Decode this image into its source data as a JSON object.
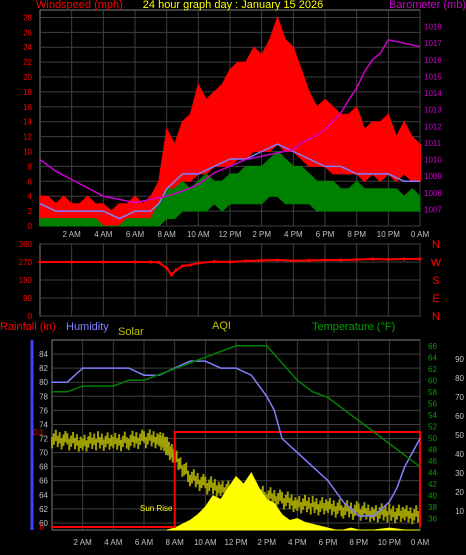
{
  "title": "24 hour graph day : January 15 2026",
  "colors": {
    "wind_gust": "#ff0000",
    "wind_avg": "#008000",
    "wind_dir": "#ff0000",
    "barometer": "#cc00cc",
    "line_blue": "#8080ff",
    "humidity": "#8080ff",
    "temperature": "#008000",
    "solar": "#a0a000",
    "uv_fill": "#ffff00",
    "rain": "#ff0000",
    "rain_axis": "#4040ff",
    "temp_axis": "#00a000",
    "aqi": "#c0c000",
    "grid": "#404040",
    "axis_text": "#c0c0c0"
  },
  "chart_data": [
    {
      "name": "wind-barometer",
      "type": "line",
      "left_label": "Windspeed (mph)",
      "right_label": "Barometer (mb)",
      "x_ticks": [
        "2 AM",
        "4 AM",
        "6 AM",
        "8 AM",
        "10 AM",
        "12 PM",
        "2 PM",
        "4 PM",
        "6 PM",
        "8 PM",
        "10 PM",
        "0 AM"
      ],
      "ylim_left": [
        0,
        29
      ],
      "ylim_right": [
        1006,
        1019
      ],
      "y_ticks_left": [
        "0",
        "2",
        "4",
        "6",
        "8",
        "10",
        "12",
        "14",
        "16",
        "18",
        "20",
        "22",
        "24",
        "26",
        "28"
      ],
      "y_ticks_right": [
        "1007",
        "1008",
        "1009",
        "1010",
        "1011",
        "1012",
        "1013",
        "1014",
        "1015",
        "1016",
        "1017",
        "1018"
      ],
      "gust_max": {
        "x": [
          0,
          0.5,
          1,
          1.5,
          2,
          2.5,
          3,
          3.5,
          4,
          4.5,
          5,
          5.5,
          6,
          6.5,
          7,
          7.5,
          8,
          8.5,
          9,
          9.5,
          10,
          10.5,
          11,
          11.5,
          12,
          12.5,
          13,
          13.5,
          14,
          14.5,
          15,
          15.5,
          16,
          16.5,
          17,
          17.5,
          18,
          18.5,
          19,
          19.5,
          20,
          20.5,
          21,
          21.5,
          22,
          22.5,
          23,
          23.5,
          24
        ],
        "y": [
          4,
          4,
          3,
          4,
          3,
          3,
          4,
          3,
          3,
          2,
          3,
          3,
          4,
          3,
          4,
          6,
          13,
          11,
          14,
          15,
          19,
          17,
          18,
          19,
          21,
          22,
          22,
          24,
          23,
          25,
          28,
          25,
          24,
          21,
          18,
          16,
          17,
          16,
          15,
          15,
          16,
          13,
          14,
          14,
          15,
          12,
          14,
          12,
          11
        ]
      },
      "gust_min": {
        "x": [
          0,
          0.5,
          1,
          1.5,
          2,
          2.5,
          3,
          3.5,
          4,
          4.5,
          5,
          5.5,
          6,
          6.5,
          7,
          7.5,
          8,
          8.5,
          9,
          9.5,
          10,
          10.5,
          11,
          11.5,
          12,
          12.5,
          13,
          13.5,
          14,
          14.5,
          15,
          15.5,
          16,
          16.5,
          17,
          17.5,
          18,
          18.5,
          19,
          19.5,
          20,
          20.5,
          21,
          21.5,
          22,
          22.5,
          23,
          23.5,
          24
        ],
        "y": [
          0,
          0,
          0,
          1,
          0,
          0,
          1,
          0,
          0,
          0,
          0,
          0,
          1,
          0,
          1,
          2,
          5,
          5,
          6,
          6,
          7,
          7,
          8,
          8,
          8,
          9,
          9,
          10,
          10,
          10,
          11,
          10,
          10,
          9,
          8,
          8,
          8,
          7,
          7,
          7,
          7,
          6,
          7,
          6,
          7,
          6,
          7,
          6,
          6
        ]
      },
      "avg_max": {
        "x": [
          0,
          0.5,
          1,
          1.5,
          2,
          2.5,
          3,
          3.5,
          4,
          4.5,
          5,
          5.5,
          6,
          6.5,
          7,
          7.5,
          8,
          8.5,
          9,
          9.5,
          10,
          10.5,
          11,
          11.5,
          12,
          12.5,
          13,
          13.5,
          14,
          14.5,
          15,
          15.5,
          16,
          16.5,
          17,
          17.5,
          18,
          18.5,
          19,
          19.5,
          20,
          20.5,
          21,
          21.5,
          22,
          22.5,
          23,
          23.5,
          24
        ],
        "y": [
          1,
          1,
          1,
          1,
          1,
          1,
          1,
          1,
          0,
          0,
          0,
          1,
          1,
          1,
          1,
          3,
          5,
          5,
          6,
          5,
          6,
          7,
          6,
          6,
          7,
          7,
          8,
          8,
          8,
          9,
          10,
          9,
          8,
          8,
          7,
          6,
          6,
          6,
          5,
          5,
          6,
          5,
          5,
          5,
          5,
          5,
          4,
          5,
          4
        ]
      },
      "avg_min": {
        "x": [
          0,
          0.5,
          1,
          1.5,
          2,
          2.5,
          3,
          3.5,
          4,
          4.5,
          5,
          5.5,
          6,
          6.5,
          7,
          7.5,
          8,
          8.5,
          9,
          9.5,
          10,
          10.5,
          11,
          11.5,
          12,
          12.5,
          13,
          13.5,
          14,
          14.5,
          15,
          15.5,
          16,
          16.5,
          17,
          17.5,
          18,
          18.5,
          19,
          19.5,
          20,
          20.5,
          21,
          21.5,
          22,
          22.5,
          23,
          23.5,
          24
        ],
        "y": [
          0,
          0,
          0,
          0,
          0,
          0,
          0,
          0,
          0,
          0,
          0,
          0,
          0,
          0,
          0,
          0,
          1,
          1,
          2,
          2,
          2,
          2,
          3,
          2,
          3,
          3,
          3,
          3,
          3,
          4,
          4,
          3,
          3,
          3,
          3,
          2,
          2,
          2,
          2,
          2,
          2,
          2,
          2,
          2,
          2,
          2,
          2,
          2,
          2
        ]
      },
      "blue_line": {
        "x": [
          0,
          1,
          2,
          3,
          4,
          5,
          6,
          7,
          7.5,
          8,
          9,
          10,
          11,
          12,
          13,
          14,
          15,
          16,
          17,
          18,
          19,
          20,
          21,
          22,
          23,
          24
        ],
        "y": [
          3,
          2,
          2,
          2,
          2,
          1,
          2,
          2,
          3,
          5,
          7,
          7,
          8,
          9,
          9,
          10,
          11,
          10,
          9,
          8,
          8,
          7,
          7,
          7,
          6,
          6
        ]
      },
      "barometer": {
        "x": [
          0,
          1,
          2,
          3,
          4,
          5,
          6,
          7,
          8,
          9,
          10,
          11,
          12,
          13,
          14,
          15,
          16,
          16.5,
          17,
          18,
          19,
          19.5,
          20,
          20.5,
          21,
          21.5,
          22,
          23,
          24
        ],
        "y": [
          1010,
          1009.3,
          1008.8,
          1008.3,
          1007.8,
          1007.6,
          1007.4,
          1007.6,
          1007.8,
          1008.1,
          1008.5,
          1009.2,
          1009.6,
          1010.0,
          1010.2,
          1010.4,
          1010.6,
          1011.0,
          1011.2,
          1011.8,
          1012.8,
          1013.6,
          1014.3,
          1015.3,
          1016.0,
          1016.4,
          1017.2,
          1017.0,
          1016.8
        ]
      }
    },
    {
      "name": "wind-direction",
      "type": "scatter",
      "y_ticks": [
        "0",
        "90",
        "180",
        "270",
        "360"
      ],
      "ylim": [
        0,
        360
      ],
      "compass": [
        "N",
        "W",
        "S",
        "E",
        "N"
      ],
      "x": [
        0,
        2,
        4,
        6,
        7,
        7.5,
        8,
        8.3,
        8.6,
        9,
        9.5,
        10,
        11,
        12,
        13,
        14,
        15,
        16,
        17,
        18,
        19,
        20,
        21,
        22,
        23,
        24
      ],
      "y": [
        270,
        270,
        270,
        270,
        270,
        268,
        240,
        205,
        230,
        250,
        255,
        265,
        272,
        270,
        275,
        278,
        280,
        276,
        278,
        280,
        280,
        282,
        285,
        283,
        285,
        285
      ]
    },
    {
      "name": "rain-humidity-solar-temperature",
      "type": "line",
      "labels": {
        "rainfall": "Rainfall (in)",
        "humidity": "Humidity",
        "solar": "Solar",
        "aqi": "AQI",
        "temperature": "Temperature (°F)"
      },
      "rain_ticks": [
        "0",
        "0.1"
      ],
      "humidity_ticks": [
        "60",
        "62",
        "64",
        "66",
        "68",
        "70",
        "72",
        "74",
        "76",
        "78",
        "80",
        "82",
        "84"
      ],
      "temperature_ticks": [
        "36",
        "38",
        "40",
        "42",
        "44",
        "46",
        "48",
        "50",
        "52",
        "54",
        "56",
        "58",
        "60",
        "62",
        "64",
        "66"
      ],
      "right_ticks": [
        "10",
        "20",
        "30",
        "40",
        "50",
        "60",
        "70",
        "80",
        "90"
      ],
      "ylim_humidity": [
        59,
        86
      ],
      "ylim_temperature": [
        34,
        67
      ],
      "ylim_right": [
        0,
        100
      ],
      "sunrise_label": "Sun Rise",
      "humidity": {
        "x": [
          0,
          1,
          2,
          3,
          4,
          5,
          6,
          7,
          8,
          9,
          10,
          11,
          12,
          13,
          14,
          14.5,
          15,
          16,
          17,
          18,
          19,
          20,
          21,
          22,
          22.5,
          23,
          23.5,
          24
        ],
        "y": [
          80,
          80,
          82,
          82,
          82,
          82,
          81,
          81,
          82,
          83,
          83,
          82,
          82,
          81,
          78,
          76,
          72,
          70,
          68,
          66,
          63,
          61,
          61,
          63,
          65,
          68,
          70,
          72
        ]
      },
      "temperature": {
        "x": [
          0,
          1,
          2,
          3,
          4,
          5,
          6,
          7,
          8,
          9,
          10,
          11,
          12,
          13,
          14,
          15,
          16,
          17,
          18,
          19,
          20,
          21,
          22,
          23,
          24
        ],
        "y": [
          58,
          58,
          59,
          59,
          59,
          60,
          60,
          61,
          62,
          63,
          64,
          65,
          66,
          66,
          66,
          63,
          60,
          58,
          57,
          55,
          53,
          51,
          49,
          47,
          45
        ]
      },
      "solar_noise": {
        "x": [
          0,
          1,
          2,
          3,
          4,
          5,
          6,
          7,
          7.5,
          8,
          9,
          10,
          11,
          12,
          13,
          14,
          15,
          16,
          17,
          18,
          19,
          20,
          21,
          22,
          23,
          24
        ],
        "y": [
          48,
          47,
          46,
          47,
          46,
          47,
          48,
          48,
          44,
          38,
          28,
          24,
          22,
          20,
          19,
          18,
          16,
          14,
          13,
          12,
          11,
          10,
          9,
          9,
          8,
          8
        ]
      },
      "uv_fill": {
        "x": [
          7.5,
          8,
          8.5,
          9,
          9.5,
          10,
          10.5,
          11,
          11.5,
          12,
          12.5,
          13,
          13.5,
          14,
          14.5,
          15,
          15.5,
          16,
          16.5,
          17,
          17.5,
          18,
          18.5,
          19,
          19.5,
          20,
          21,
          22,
          23,
          24
        ],
        "y": [
          0,
          1,
          3,
          5,
          8,
          12,
          18,
          16,
          22,
          28,
          24,
          30,
          22,
          16,
          14,
          8,
          5,
          6,
          4,
          3,
          2,
          1,
          0,
          0,
          1,
          0,
          0,
          1,
          0,
          0
        ]
      },
      "rain_box": {
        "x": [
          0,
          7.5,
          8,
          8,
          24,
          24
        ],
        "y": [
          0,
          0,
          0,
          0.1,
          0.1,
          0
        ]
      }
    }
  ]
}
